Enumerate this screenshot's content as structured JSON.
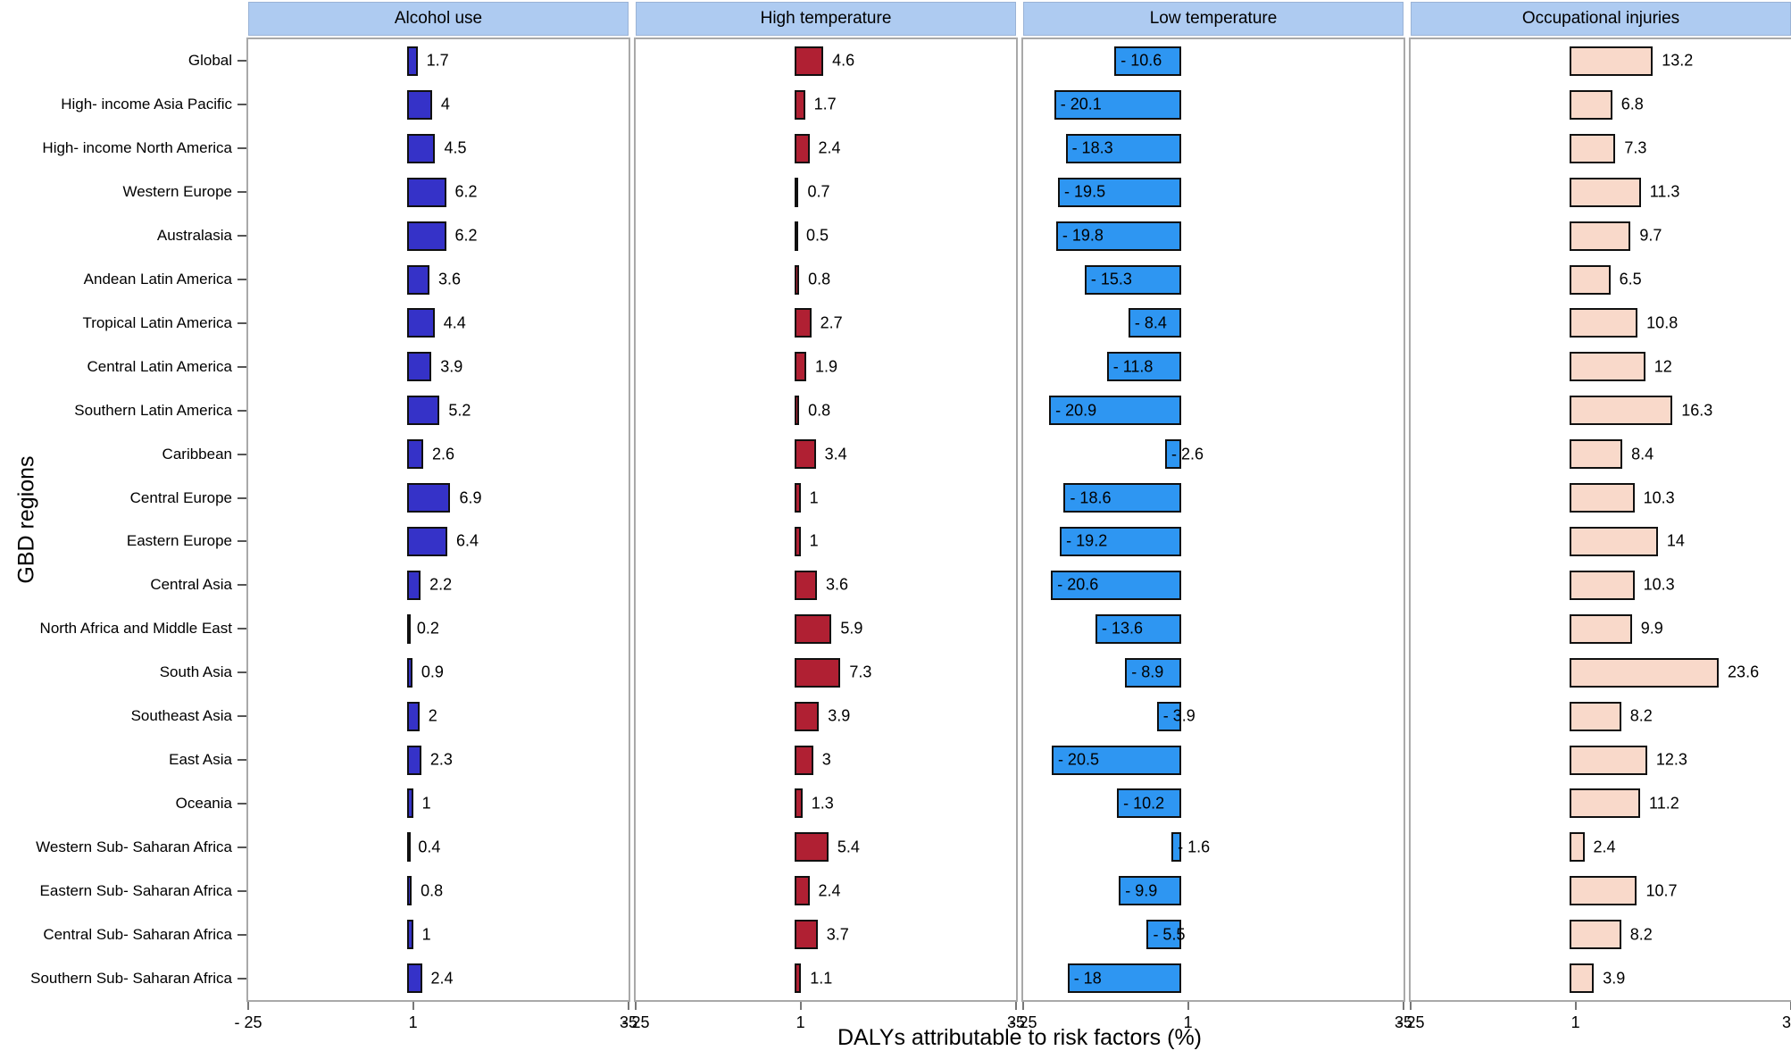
{
  "chart_data": {
    "type": "bar",
    "orientation": "horizontal",
    "xlabel": "DALYs attributable to risk factors (%)",
    "ylabel": "GBD regions",
    "xlim": [
      -25,
      35
    ],
    "xticks": [
      -25,
      1,
      35
    ],
    "xtick_labels": [
      "- 25",
      "1",
      "35"
    ],
    "grid": false,
    "legend": "none",
    "facets": [
      "Alcohol use",
      "High temperature",
      "Low temperature",
      "Occupational injuries"
    ],
    "categories": [
      "Global",
      "High- income Asia Pacific",
      "High- income North America",
      "Western Europe",
      "Australasia",
      "Andean Latin America",
      "Tropical Latin America",
      "Central Latin America",
      "Southern Latin America",
      "Caribbean",
      "Central Europe",
      "Eastern Europe",
      "Central Asia",
      "North Africa and Middle East",
      "South Asia",
      "Southeast Asia",
      "East Asia",
      "Oceania",
      "Western Sub- Saharan Africa",
      "Eastern Sub- Saharan Africa",
      "Central Sub- Saharan Africa",
      "Southern Sub- Saharan Africa"
    ],
    "series": [
      {
        "name": "Alcohol use",
        "color": "#3532C8",
        "label_position": "outside-right",
        "values": [
          1.7,
          4,
          4.5,
          6.2,
          6.2,
          3.6,
          4.4,
          3.9,
          5.2,
          2.6,
          6.9,
          6.4,
          2.2,
          0.2,
          0.9,
          2,
          2.3,
          1,
          0.4,
          0.8,
          1,
          2.4
        ],
        "labels": [
          "1.7",
          "4",
          "4.5",
          "6.2",
          "6.2",
          "3.6",
          "4.4",
          "3.9",
          "5.2",
          "2.6",
          "6.9",
          "6.4",
          "2.2",
          "0.2",
          "0.9",
          "2",
          "2.3",
          "1",
          "0.4",
          "0.8",
          "1",
          "2.4"
        ]
      },
      {
        "name": "High temperature",
        "color": "#B02033",
        "label_position": "outside-right",
        "values": [
          4.6,
          1.7,
          2.4,
          0.7,
          0.5,
          0.8,
          2.7,
          1.9,
          0.8,
          3.4,
          1,
          1,
          3.6,
          5.9,
          7.3,
          3.9,
          3,
          1.3,
          5.4,
          2.4,
          3.7,
          1.1
        ],
        "labels": [
          "4.6",
          "1.7",
          "2.4",
          "0.7",
          "0.5",
          "0.8",
          "2.7",
          "1.9",
          "0.8",
          "3.4",
          "1",
          "1",
          "3.6",
          "5.9",
          "7.3",
          "3.9",
          "3",
          "1.3",
          "5.4",
          "2.4",
          "3.7",
          "1.1"
        ]
      },
      {
        "name": "Low temperature",
        "color": "#2E96F2",
        "label_position": "inside-left",
        "values": [
          -10.6,
          -20.1,
          -18.3,
          -19.5,
          -19.8,
          -15.3,
          -8.4,
          -11.8,
          -20.9,
          -2.6,
          -18.6,
          -19.2,
          -20.6,
          -13.6,
          -8.9,
          -3.9,
          -20.5,
          -10.2,
          -1.6,
          -9.9,
          -5.5,
          -18
        ],
        "labels": [
          "- 10.6",
          "- 20.1",
          "- 18.3",
          "- 19.5",
          "- 19.8",
          "- 15.3",
          "- 8.4",
          "- 11.8",
          "- 20.9",
          "- 2.6",
          "- 18.6",
          "- 19.2",
          "- 20.6",
          "- 13.6",
          "- 8.9",
          "- 3.9",
          "- 20.5",
          "- 10.2",
          "- 1.6",
          "- 9.9",
          "- 5.5",
          "- 18"
        ]
      },
      {
        "name": "Occupational injuries",
        "color": "#F9D9CA",
        "label_position": "outside-right",
        "values": [
          13.2,
          6.8,
          7.3,
          11.3,
          9.7,
          6.5,
          10.8,
          12,
          16.3,
          8.4,
          10.3,
          14,
          10.3,
          9.9,
          23.6,
          8.2,
          12.3,
          11.2,
          2.4,
          10.7,
          8.2,
          3.9
        ],
        "labels": [
          "13.2",
          "6.8",
          "7.3",
          "11.3",
          "9.7",
          "6.5",
          "10.8",
          "12",
          "16.3",
          "8.4",
          "10.3",
          "14",
          "10.3",
          "9.9",
          "23.6",
          "8.2",
          "12.3",
          "11.2",
          "2.4",
          "10.7",
          "8.2",
          "3.9"
        ]
      }
    ],
    "colors": {
      "facet_header_bg": "#AECBF1",
      "panel_border": "#A9A9A9",
      "bar_border": "#101010",
      "text": "#000000"
    }
  }
}
